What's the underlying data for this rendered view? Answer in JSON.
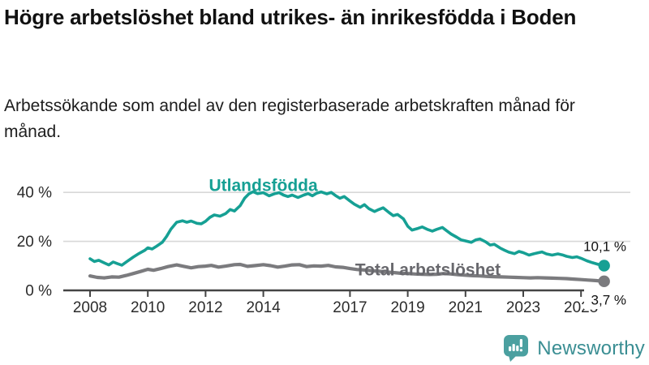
{
  "chart_data": {
    "type": "line",
    "title": "Högre arbetslöshet bland utrikes- än inrikesfödda i Boden",
    "subtitle": "Arbetssökande som andel av den registerbaserade arbetskraften månad för månad.",
    "x_range": [
      2008,
      2025.8
    ],
    "y_range": [
      0,
      45
    ],
    "grid": "horizontal-only",
    "legend": "inline-labels",
    "y_ticks": [
      {
        "value": 0,
        "label": "0 %"
      },
      {
        "value": 20,
        "label": "20 %"
      },
      {
        "value": 40,
        "label": "40 %"
      }
    ],
    "x_ticks": [
      {
        "year": 2008,
        "label": "2008"
      },
      {
        "year": 2010,
        "label": "2010"
      },
      {
        "year": 2012,
        "label": "2012"
      },
      {
        "year": 2014,
        "label": "2014"
      },
      {
        "year": 2017,
        "label": "2017"
      },
      {
        "year": 2019,
        "label": "2019"
      },
      {
        "year": 2021,
        "label": "2021"
      },
      {
        "year": 2023,
        "label": "2023"
      },
      {
        "year": 2025,
        "label": "2025"
      }
    ],
    "series": [
      {
        "name": "Utlandsfödda",
        "color": "#16a094",
        "line_width": 3.6,
        "end_label": "10,1 %",
        "end_value": 10.1,
        "end_label_pos": "above",
        "label_at": {
          "x": 2014.0,
          "y": 40.6,
          "anchor": "middle"
        },
        "points": [
          [
            2008.0,
            12.9
          ],
          [
            2008.15,
            11.8
          ],
          [
            2008.3,
            12.3
          ],
          [
            2008.5,
            11.2
          ],
          [
            2008.65,
            10.4
          ],
          [
            2008.8,
            11.6
          ],
          [
            2008.95,
            10.9
          ],
          [
            2009.1,
            10.3
          ],
          [
            2009.3,
            12.0
          ],
          [
            2009.5,
            13.6
          ],
          [
            2009.7,
            15.1
          ],
          [
            2009.9,
            16.4
          ],
          [
            2010.0,
            17.4
          ],
          [
            2010.15,
            16.9
          ],
          [
            2010.3,
            18.0
          ],
          [
            2010.5,
            19.6
          ],
          [
            2010.65,
            22.0
          ],
          [
            2010.8,
            25.0
          ],
          [
            2011.0,
            27.8
          ],
          [
            2011.2,
            28.4
          ],
          [
            2011.35,
            27.8
          ],
          [
            2011.5,
            28.3
          ],
          [
            2011.7,
            27.4
          ],
          [
            2011.85,
            27.2
          ],
          [
            2012.0,
            28.2
          ],
          [
            2012.15,
            29.8
          ],
          [
            2012.3,
            30.8
          ],
          [
            2012.5,
            30.3
          ],
          [
            2012.7,
            31.4
          ],
          [
            2012.85,
            33.0
          ],
          [
            2013.0,
            32.4
          ],
          [
            2013.2,
            34.6
          ],
          [
            2013.35,
            37.6
          ],
          [
            2013.5,
            39.4
          ],
          [
            2013.65,
            40.3
          ],
          [
            2013.8,
            39.5
          ],
          [
            2014.0,
            39.9
          ],
          [
            2014.2,
            38.6
          ],
          [
            2014.4,
            39.5
          ],
          [
            2014.55,
            39.9
          ],
          [
            2014.7,
            38.9
          ],
          [
            2014.85,
            38.3
          ],
          [
            2015.0,
            38.9
          ],
          [
            2015.2,
            37.9
          ],
          [
            2015.4,
            38.9
          ],
          [
            2015.55,
            39.5
          ],
          [
            2015.7,
            38.6
          ],
          [
            2015.85,
            39.7
          ],
          [
            2016.0,
            40.2
          ],
          [
            2016.2,
            39.4
          ],
          [
            2016.35,
            40.0
          ],
          [
            2016.5,
            38.7
          ],
          [
            2016.65,
            37.6
          ],
          [
            2016.8,
            38.3
          ],
          [
            2017.0,
            36.5
          ],
          [
            2017.15,
            35.2
          ],
          [
            2017.35,
            33.9
          ],
          [
            2017.5,
            35.0
          ],
          [
            2017.65,
            33.4
          ],
          [
            2017.85,
            32.2
          ],
          [
            2018.0,
            33.0
          ],
          [
            2018.15,
            33.7
          ],
          [
            2018.35,
            31.8
          ],
          [
            2018.5,
            30.5
          ],
          [
            2018.65,
            31.0
          ],
          [
            2018.85,
            29.2
          ],
          [
            2019.0,
            26.2
          ],
          [
            2019.15,
            24.6
          ],
          [
            2019.35,
            25.3
          ],
          [
            2019.5,
            25.9
          ],
          [
            2019.7,
            24.8
          ],
          [
            2019.85,
            24.2
          ],
          [
            2020.0,
            24.9
          ],
          [
            2020.2,
            25.7
          ],
          [
            2020.35,
            24.3
          ],
          [
            2020.5,
            23.0
          ],
          [
            2020.7,
            21.7
          ],
          [
            2020.85,
            20.6
          ],
          [
            2021.0,
            20.2
          ],
          [
            2021.2,
            19.6
          ],
          [
            2021.35,
            20.6
          ],
          [
            2021.5,
            21.0
          ],
          [
            2021.7,
            19.8
          ],
          [
            2021.85,
            18.5
          ],
          [
            2022.0,
            18.8
          ],
          [
            2022.2,
            17.3
          ],
          [
            2022.35,
            16.4
          ],
          [
            2022.5,
            15.6
          ],
          [
            2022.7,
            15.0
          ],
          [
            2022.85,
            15.9
          ],
          [
            2023.0,
            15.4
          ],
          [
            2023.2,
            14.4
          ],
          [
            2023.35,
            14.9
          ],
          [
            2023.5,
            15.3
          ],
          [
            2023.65,
            15.7
          ],
          [
            2023.8,
            14.9
          ],
          [
            2024.0,
            14.4
          ],
          [
            2024.2,
            14.9
          ],
          [
            2024.35,
            14.5
          ],
          [
            2024.5,
            13.9
          ],
          [
            2024.7,
            13.4
          ],
          [
            2024.85,
            13.7
          ],
          [
            2025.0,
            13.1
          ],
          [
            2025.2,
            12.1
          ],
          [
            2025.4,
            11.3
          ],
          [
            2025.6,
            10.6
          ],
          [
            2025.8,
            10.1
          ]
        ]
      },
      {
        "name": "Total arbetslöshet",
        "color": "#7b7b7e",
        "label_color": "#68686d",
        "line_width": 4.2,
        "end_label": "3,7 %",
        "end_value": 3.7,
        "end_label_pos": "below",
        "label_at": {
          "x": 2017.18,
          "y": 6.2,
          "anchor": "start"
        },
        "points": [
          [
            2008.0,
            5.9
          ],
          [
            2008.25,
            5.3
          ],
          [
            2008.5,
            5.1
          ],
          [
            2008.75,
            5.5
          ],
          [
            2009.0,
            5.4
          ],
          [
            2009.25,
            6.1
          ],
          [
            2009.5,
            6.9
          ],
          [
            2009.75,
            7.7
          ],
          [
            2010.0,
            8.6
          ],
          [
            2010.2,
            8.2
          ],
          [
            2010.45,
            8.9
          ],
          [
            2010.7,
            9.7
          ],
          [
            2011.0,
            10.4
          ],
          [
            2011.25,
            9.8
          ],
          [
            2011.5,
            9.2
          ],
          [
            2011.75,
            9.7
          ],
          [
            2012.0,
            9.9
          ],
          [
            2012.2,
            10.2
          ],
          [
            2012.45,
            9.5
          ],
          [
            2012.7,
            9.9
          ],
          [
            2013.0,
            10.5
          ],
          [
            2013.2,
            10.6
          ],
          [
            2013.45,
            9.8
          ],
          [
            2013.7,
            10.1
          ],
          [
            2014.0,
            10.5
          ],
          [
            2014.25,
            10.1
          ],
          [
            2014.5,
            9.5
          ],
          [
            2014.75,
            9.9
          ],
          [
            2015.0,
            10.4
          ],
          [
            2015.25,
            10.5
          ],
          [
            2015.5,
            9.7
          ],
          [
            2015.75,
            10.0
          ],
          [
            2016.0,
            9.9
          ],
          [
            2016.25,
            10.2
          ],
          [
            2016.5,
            9.6
          ],
          [
            2016.75,
            9.4
          ],
          [
            2017.0,
            8.9
          ],
          [
            2017.25,
            8.5
          ],
          [
            2017.5,
            8.3
          ],
          [
            2017.75,
            8.0
          ],
          [
            2018.0,
            7.8
          ],
          [
            2018.25,
            7.5
          ],
          [
            2018.5,
            7.3
          ],
          [
            2018.75,
            7.0
          ],
          [
            2019.0,
            6.9
          ],
          [
            2019.25,
            6.7
          ],
          [
            2019.5,
            6.6
          ],
          [
            2019.75,
            6.5
          ],
          [
            2020.0,
            6.6
          ],
          [
            2020.25,
            6.9
          ],
          [
            2020.5,
            6.7
          ],
          [
            2020.75,
            6.4
          ],
          [
            2021.0,
            6.2
          ],
          [
            2021.25,
            6.0
          ],
          [
            2021.5,
            5.9
          ],
          [
            2021.75,
            5.7
          ],
          [
            2022.0,
            5.6
          ],
          [
            2022.25,
            5.5
          ],
          [
            2022.5,
            5.4
          ],
          [
            2022.75,
            5.3
          ],
          [
            2023.0,
            5.2
          ],
          [
            2023.25,
            5.1
          ],
          [
            2023.5,
            5.2
          ],
          [
            2023.75,
            5.1
          ],
          [
            2024.0,
            5.0
          ],
          [
            2024.25,
            4.9
          ],
          [
            2024.5,
            4.8
          ],
          [
            2024.75,
            4.6
          ],
          [
            2025.0,
            4.4
          ],
          [
            2025.25,
            4.2
          ],
          [
            2025.5,
            4.0
          ],
          [
            2025.8,
            3.7
          ]
        ]
      }
    ],
    "colors": {
      "grid": "#d8d8d8",
      "axis": "#444444",
      "tick_label": "#2b2b2b",
      "annotation": "#111111"
    }
  },
  "branding": {
    "name": "Newsworthy",
    "icon": "newsworthy-bubble-chart-icon",
    "icon_color": "#4ba0a0",
    "text_color": "#3a8e93"
  }
}
